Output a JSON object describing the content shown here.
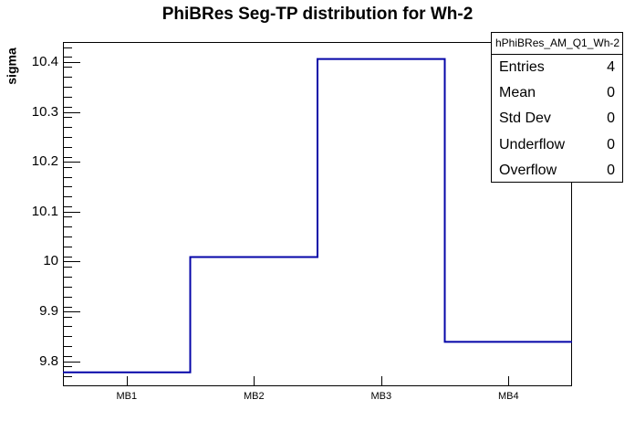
{
  "title": "PhiBRes Seg-TP distribution for Wh-2",
  "stats_box": {
    "header": "hPhiBRes_AM_Q1_Wh-2",
    "rows": [
      {
        "label": "Entries",
        "value": "4"
      },
      {
        "label": "Mean",
        "value": "0"
      },
      {
        "label": "Std Dev",
        "value": "0"
      },
      {
        "label": "Underflow",
        "value": "0"
      },
      {
        "label": "Overflow",
        "value": "0"
      }
    ]
  },
  "chart_data": {
    "type": "bar",
    "style": "step-outline-histogram",
    "categories": [
      "MB1",
      "MB2",
      "MB3",
      "MB4"
    ],
    "values": [
      9.778,
      10.009,
      10.406,
      9.839
    ],
    "title": "PhiBRes Seg-TP distribution for Wh-2",
    "xlabel": "",
    "ylabel": "sigma",
    "ylim": [
      9.75,
      10.44
    ],
    "y_major_ticks": [
      9.8,
      9.9,
      10,
      10.1,
      10.2,
      10.3,
      10.4
    ],
    "y_tick_labels": [
      "9.8",
      "9.9",
      "10",
      "10.1",
      "10.2",
      "10.3",
      "10.4"
    ],
    "y_minor_step": 0.02,
    "grid": false,
    "legend_position": "none",
    "line_color": "#0404a8",
    "frame_color": "#000000",
    "background_color": "#ffffff"
  }
}
